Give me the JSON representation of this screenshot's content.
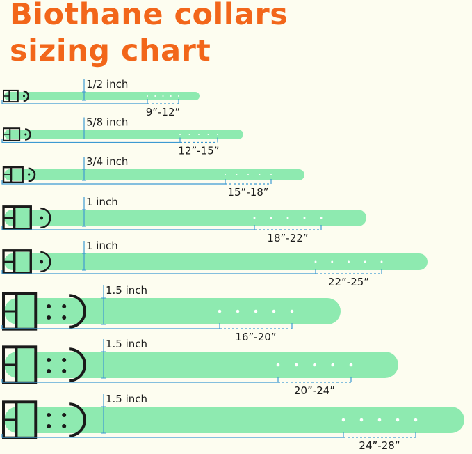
{
  "title": {
    "line1": "Biothane collars",
    "line2": "sizing chart"
  },
  "colors": {
    "title": "#f2661a",
    "strap": "#8eeab0",
    "measure_line": "#3d9ad2",
    "hardware": "#1a1a1a",
    "background": "#fdfdf0"
  },
  "collars": [
    {
      "width_label": "1/2 inch",
      "range_label": "9”-12”"
    },
    {
      "width_label": "5/8 inch",
      "range_label": "12”-15”"
    },
    {
      "width_label": "3/4 inch",
      "range_label": "15”-18”"
    },
    {
      "width_label": "1 inch",
      "range_label": "18”-22”"
    },
    {
      "width_label": "1 inch",
      "range_label": "22”-25”"
    },
    {
      "width_label": "1.5 inch",
      "range_label": "16”-20”"
    },
    {
      "width_label": "1.5 inch",
      "range_label": "20”-24”"
    },
    {
      "width_label": "1.5 inch",
      "range_label": "24”-28”"
    }
  ]
}
